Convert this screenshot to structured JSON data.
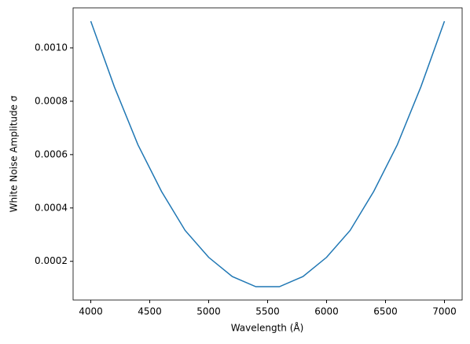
{
  "chart_data": {
    "type": "line",
    "xlabel": "Wavelength (Å)",
    "ylabel": "White Noise Amplitude σ",
    "x": [
      4000,
      4200,
      4400,
      4600,
      4800,
      5000,
      5200,
      5400,
      5600,
      5800,
      6000,
      6200,
      6400,
      6600,
      6800,
      7000
    ],
    "series": [
      {
        "color": "#1f77b4",
        "values": [
          0.0011,
          0.000854,
          0.000637,
          0.000462,
          0.000316,
          0.000215,
          0.000143,
          0.000105,
          0.000105,
          0.000143,
          0.000215,
          0.000316,
          0.000462,
          0.000637,
          0.000854,
          0.0011
        ]
      }
    ],
    "xlim": [
      3850,
      7150
    ],
    "ylim": [
      5.5e-05,
      0.00115
    ],
    "xticks": [
      4000,
      4500,
      5000,
      5500,
      6000,
      6500,
      7000
    ],
    "yticks": [
      0.0002,
      0.0004,
      0.0006,
      0.0008,
      {
        "value": 0.001,
        "label": "0.0010"
      }
    ],
    "grid": false
  }
}
